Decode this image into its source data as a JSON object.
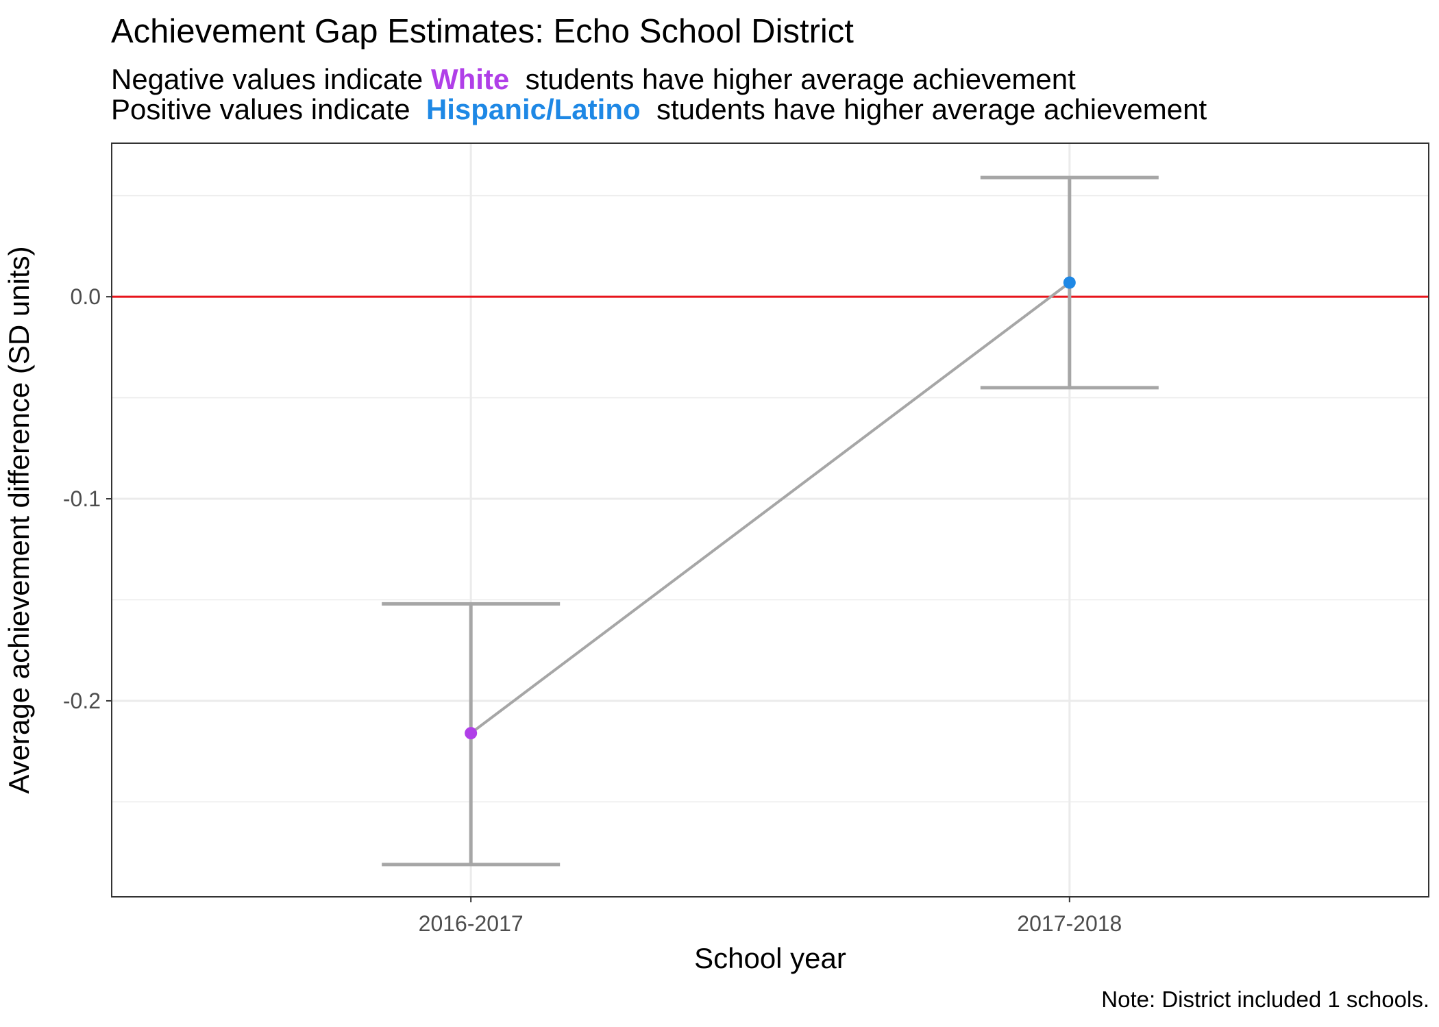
{
  "title": "Achievement Gap Estimates: Echo School District",
  "subtitle": {
    "line1_prefix": "Negative values indicate",
    "line1_group": "White",
    "line1_suffix": "students have higher average achievement",
    "line2_prefix": "Positive values indicate",
    "line2_group": "Hispanic/Latino",
    "line2_suffix": "students have higher average achievement"
  },
  "colors": {
    "white_group": "#B03FE8",
    "hispanic_group": "#1E88E5",
    "zero_line": "#E8141B",
    "series": "#A6A6A6"
  },
  "note": "Note: District included 1 schools.",
  "chart_data": {
    "type": "line",
    "categories": [
      "2016-2017",
      "2017-2018"
    ],
    "series": [
      {
        "values": [
          -0.216,
          0.007
        ],
        "ci_low": [
          -0.281,
          -0.045
        ],
        "ci_high": [
          -0.152,
          0.059
        ],
        "point_colors": [
          "#B03FE8",
          "#1E88E5"
        ]
      }
    ],
    "reference_line": 0.0,
    "xlabel": "School year",
    "ylabel": "Average achievement difference (SD units)",
    "ylim": [
      -0.297,
      0.076
    ],
    "yticks": [
      0.0,
      -0.1,
      -0.2
    ],
    "ytick_labels": [
      "0.0",
      "-0.1",
      "-0.2"
    ],
    "grid": true,
    "legend": "none"
  }
}
